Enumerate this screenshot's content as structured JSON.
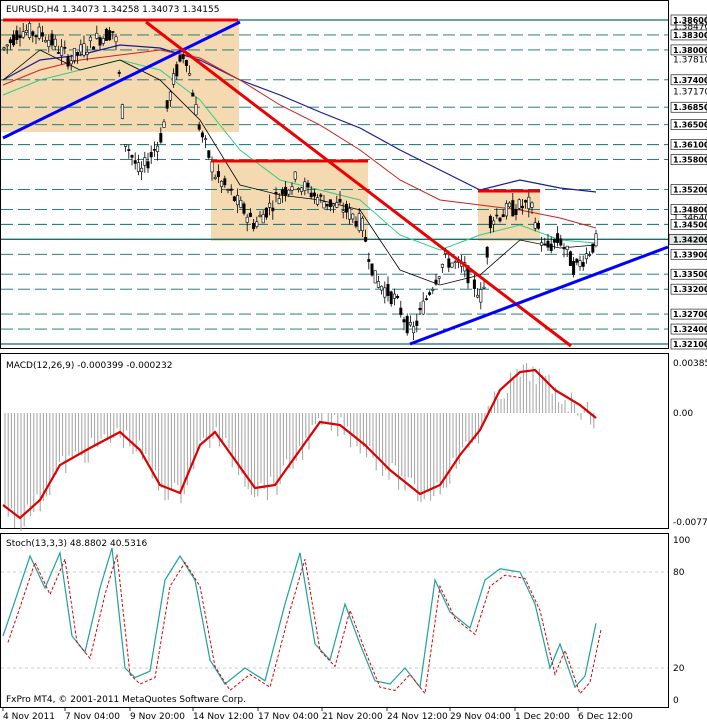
{
  "chart_data": [
    {
      "type": "candlestick",
      "panel": "price",
      "header": "EURUSD,H4  1.34073 1.34258 1.34073 1.34155",
      "yaxis_labels": [
        "1.38600",
        "1.38470",
        "1.38300",
        "1.38000",
        "1.37810",
        "1.37400",
        "1.37170",
        "1.36850",
        "1.36500",
        "1.36100",
        "1.35800",
        "1.35200",
        "1.34800",
        "1.34640",
        "1.34500",
        "1.34200",
        "1.33900",
        "1.33500",
        "1.33200",
        "1.32700",
        "1.32400",
        "1.32100"
      ],
      "ylim": [
        1.32,
        1.3875
      ],
      "levels": [
        1.386,
        1.383,
        1.38,
        1.374,
        1.3685,
        1.365,
        1.361,
        1.358,
        1.352,
        1.348,
        1.345,
        1.342,
        1.339,
        1.335,
        1.332,
        1.327,
        1.324,
        1.321
      ],
      "current_price": 1.342,
      "ma_colors": {
        "fast": "#000000",
        "ma_red": "#cc2222",
        "ma_green": "#33cc88",
        "ma_blue": "#1a1a99"
      },
      "support_color": "#0000ff",
      "trend_color": "#ee0000",
      "zone_color": "#f5d9b0"
    },
    {
      "type": "line",
      "panel": "macd",
      "header": "MACD(12,26,9) -0.000399 -0.000232",
      "yaxis_labels": [
        "0.003850",
        "0.00",
        "-0.007700"
      ],
      "ylim": [
        -0.008,
        0.004
      ],
      "histogram_color": "#a0a0a0",
      "signal_color": "#dd0000"
    },
    {
      "type": "line",
      "panel": "stochastic",
      "header": "Stoch(13,3,3) 48.8802 40.5316",
      "yaxis_labels": [
        "100",
        "80",
        "20",
        "0"
      ],
      "ylim": [
        0,
        100
      ],
      "main_color": "#20a0a0",
      "signal_color": "#dd0000"
    }
  ],
  "xaxis_labels": [
    "4 Nov 2011",
    "7 Nov 04:00",
    "9 Nov 20:00",
    "14 Nov 12:00",
    "17 Nov 04:00",
    "21 Nov 20:00",
    "24 Nov 12:00",
    "29 Nov 04:00",
    "1 Dec 20:00",
    "6 Dec 12:00"
  ],
  "footer": "FxPro MT4, © 2001-2011 MetaQuotes Software Corp."
}
